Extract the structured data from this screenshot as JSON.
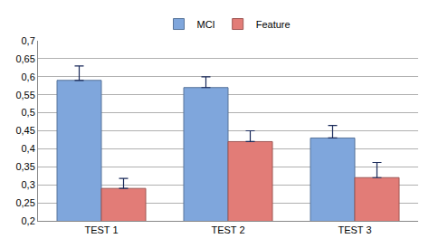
{
  "chart_data": {
    "type": "bar",
    "categories": [
      "TEST 1",
      "TEST 2",
      "TEST 3"
    ],
    "series": [
      {
        "name": "MCI",
        "color": "#7fa6dc",
        "values": [
          0.59,
          0.57,
          0.43
        ],
        "errors": [
          0.04,
          0.03,
          0.035
        ]
      },
      {
        "name": "Feature",
        "color": "#e27c77",
        "values": [
          0.29,
          0.42,
          0.32
        ],
        "errors": [
          0.028,
          0.03,
          0.042
        ]
      }
    ],
    "ylim": [
      0.2,
      0.7
    ],
    "yticks": [
      {
        "value": 0.2,
        "label": "0,2"
      },
      {
        "value": 0.25,
        "label": "0,25"
      },
      {
        "value": 0.3,
        "label": "0,3"
      },
      {
        "value": 0.35,
        "label": "0,35"
      },
      {
        "value": 0.4,
        "label": "0,4"
      },
      {
        "value": 0.45,
        "label": "0,45"
      },
      {
        "value": 0.5,
        "label": "0,5"
      },
      {
        "value": 0.55,
        "label": "0,55"
      },
      {
        "value": 0.6,
        "label": "0,6"
      },
      {
        "value": 0.65,
        "label": "0,65"
      },
      {
        "value": 0.7,
        "label": "0,7"
      }
    ],
    "grid": true,
    "legend": "top"
  }
}
